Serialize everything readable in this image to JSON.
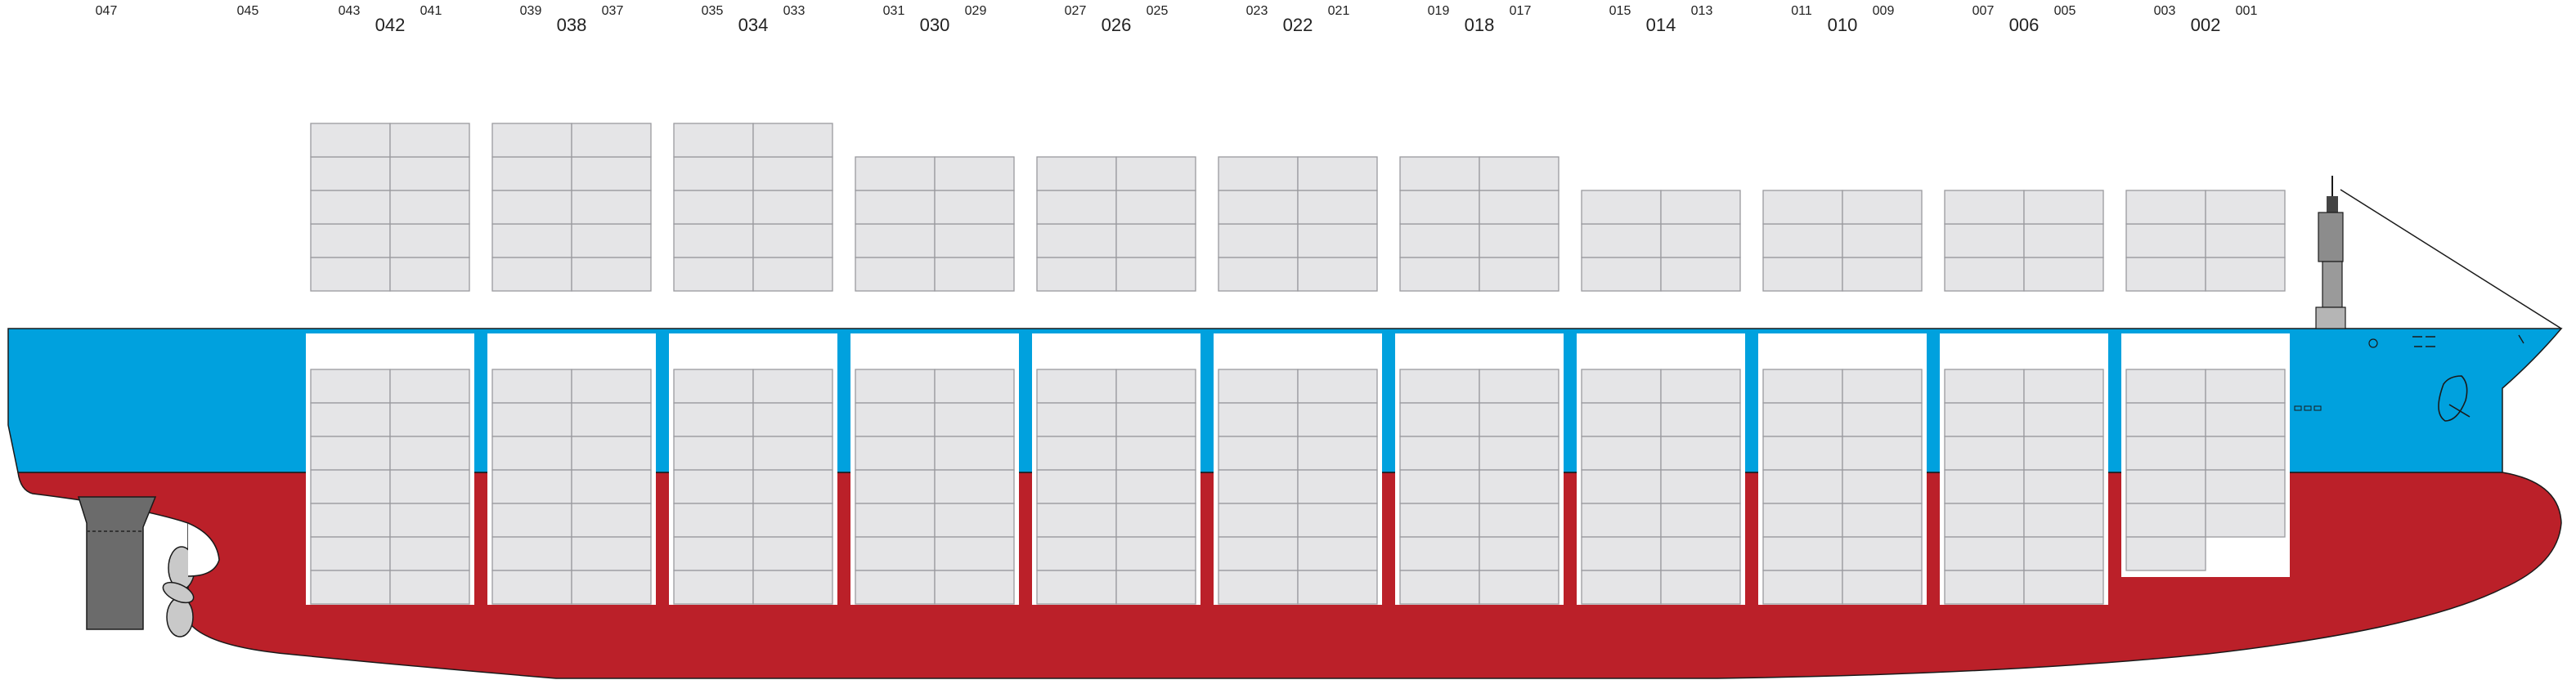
{
  "colors": {
    "hull_red": "#bb2029",
    "hull_blue": "#00a1de",
    "container_fill": "#e5e5e7",
    "container_stroke": "#9a9a9e",
    "hold_fill": "#ffffff",
    "outline": "#1a1a1a",
    "rudder": "#6b6b6b",
    "propeller": "#c9c9c9"
  },
  "bay_labels": [
    {
      "fore": "047",
      "main": "",
      "aft": ""
    },
    {
      "fore": "",
      "main": "045",
      "aft": ""
    },
    {
      "fore": "043",
      "main": "042",
      "aft": "041"
    },
    {
      "fore": "039",
      "main": "038",
      "aft": "037"
    },
    {
      "fore": "035",
      "main": "034",
      "aft": "033"
    },
    {
      "fore": "031",
      "main": "030",
      "aft": "029"
    },
    {
      "fore": "027",
      "main": "026",
      "aft": "025"
    },
    {
      "fore": "023",
      "main": "022",
      "aft": "021"
    },
    {
      "fore": "019",
      "main": "018",
      "aft": "017"
    },
    {
      "fore": "015",
      "main": "014",
      "aft": "013"
    },
    {
      "fore": "011",
      "main": "010",
      "aft": "009"
    },
    {
      "fore": "007",
      "main": "006",
      "aft": "005"
    },
    {
      "fore": "003",
      "main": "002",
      "aft": "001"
    }
  ],
  "deck_stacks": [
    {
      "bay": "042",
      "tiers": 5
    },
    {
      "bay": "038",
      "tiers": 5
    },
    {
      "bay": "034",
      "tiers": 5
    },
    {
      "bay": "030",
      "tiers": 4
    },
    {
      "bay": "026",
      "tiers": 4
    },
    {
      "bay": "022",
      "tiers": 4
    },
    {
      "bay": "018",
      "tiers": 4
    },
    {
      "bay": "014",
      "tiers": 3
    },
    {
      "bay": "010",
      "tiers": 3
    },
    {
      "bay": "006",
      "tiers": 3
    },
    {
      "bay": "002",
      "tiers": 3
    }
  ],
  "hold_stacks": [
    {
      "bay": "042",
      "tiers": 7
    },
    {
      "bay": "038",
      "tiers": 7
    },
    {
      "bay": "034",
      "tiers": 7
    },
    {
      "bay": "030",
      "tiers": 7
    },
    {
      "bay": "026",
      "tiers": 7
    },
    {
      "bay": "022",
      "tiers": 7
    },
    {
      "bay": "018",
      "tiers": 7
    },
    {
      "bay": "014",
      "tiers": 7
    },
    {
      "bay": "010",
      "tiers": 7
    },
    {
      "bay": "006",
      "tiers": 7
    },
    {
      "bay": "002",
      "tiers": 6
    }
  ]
}
